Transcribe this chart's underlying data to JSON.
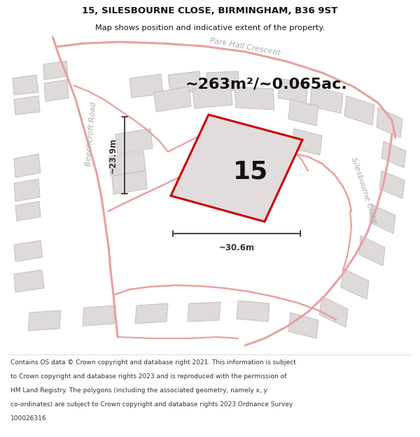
{
  "title": "15, SILESBOURNE CLOSE, BIRMINGHAM, B36 9ST",
  "subtitle": "Map shows position and indicative extent of the property.",
  "area_text": "~263m²/~0.065ac.",
  "plot_number": "15",
  "dim_width": "~30.6m",
  "dim_height": "~23.9m",
  "footer_lines": [
    "Contains OS data © Crown copyright and database right 2021. This information is subject",
    "to Crown copyright and database rights 2023 and is reproduced with the permission of",
    "HM Land Registry. The polygons (including the associated geometry, namely x, y",
    "co-ordinates) are subject to Crown copyright and database rights 2023 Ordnance Survey",
    "100026316."
  ],
  "map_bg": "#eeebeb",
  "plot_fill": "#e2dcdc",
  "plot_outline": "#cc0000",
  "road_color": "#e8a0a0",
  "road_lw": 1.8,
  "building_fill": "#dedad9",
  "building_outline": "#c5c0bf",
  "road_label_color": "#aaaaaa",
  "text_color": "#111111",
  "dim_line_color": "#333333",
  "title_fontsize": 9.5,
  "subtitle_fontsize": 8.2,
  "area_fontsize": 16,
  "plot_num_fontsize": 26,
  "dim_label_fontsize": 8.5,
  "footer_fontsize": 6.5,
  "road_label_fontsize": 8
}
